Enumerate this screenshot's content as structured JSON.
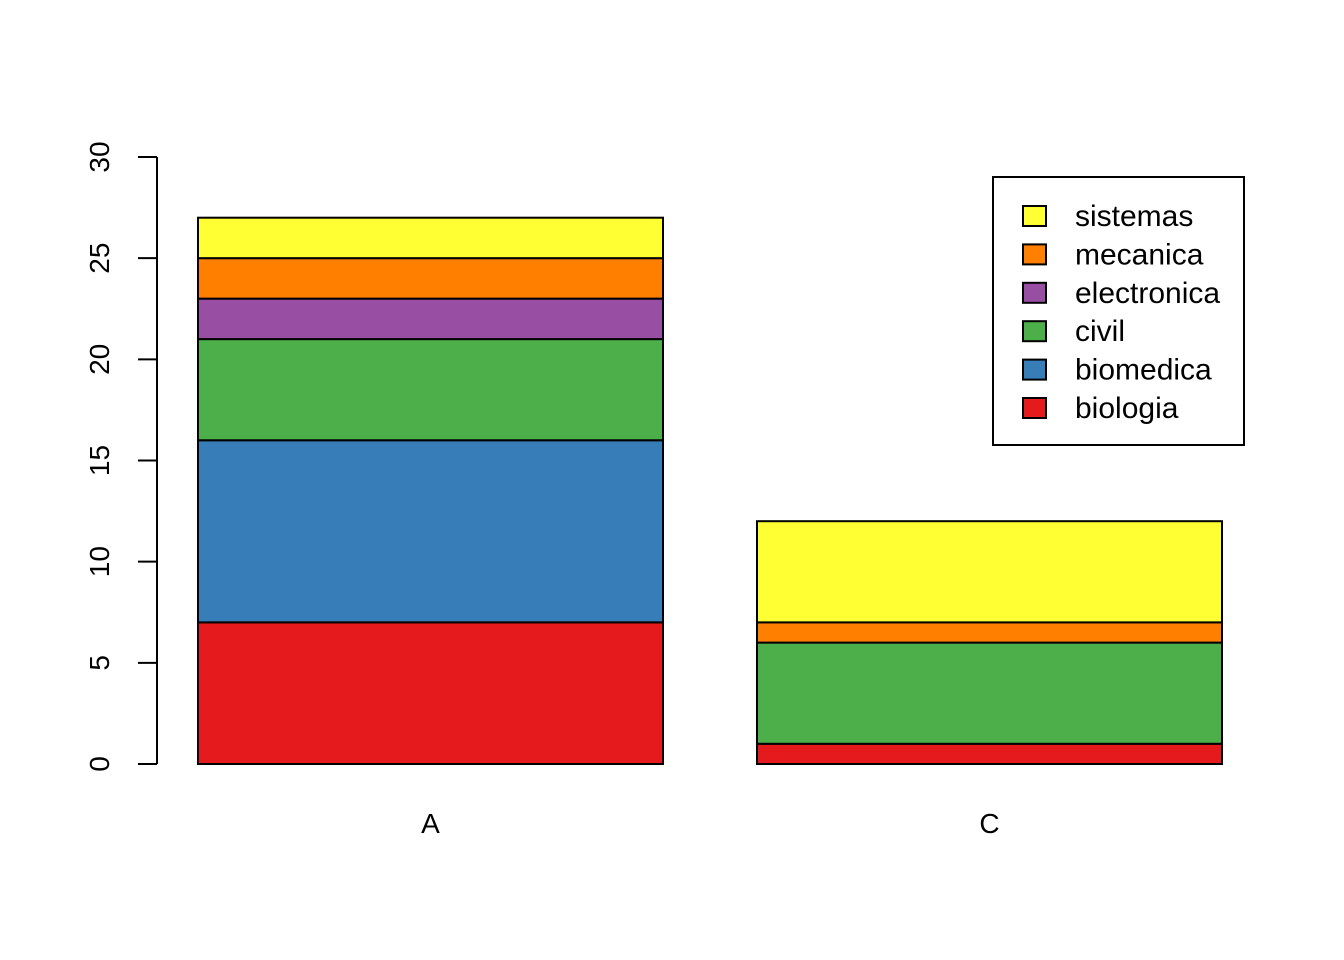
{
  "chart_data": {
    "type": "bar",
    "stacked": true,
    "categories": [
      "A",
      "C"
    ],
    "series": [
      {
        "name": "biologia",
        "color": "#E41A1C",
        "values": [
          7,
          1
        ]
      },
      {
        "name": "biomedica",
        "color": "#377EB8",
        "values": [
          9,
          0
        ]
      },
      {
        "name": "civil",
        "color": "#4DAF4A",
        "values": [
          5,
          5
        ]
      },
      {
        "name": "electronica",
        "color": "#984EA3",
        "values": [
          2,
          0
        ]
      },
      {
        "name": "mecanica",
        "color": "#FF7F00",
        "values": [
          2,
          1
        ]
      },
      {
        "name": "sistemas",
        "color": "#FFFF33",
        "values": [
          2,
          5
        ]
      }
    ],
    "ylim": [
      0,
      30
    ],
    "yticks": [
      "0",
      "5",
      "10",
      "15",
      "20",
      "25",
      "30"
    ],
    "grid": false,
    "legend_position": "top-right",
    "title": "",
    "xlabel": "",
    "ylabel": ""
  }
}
